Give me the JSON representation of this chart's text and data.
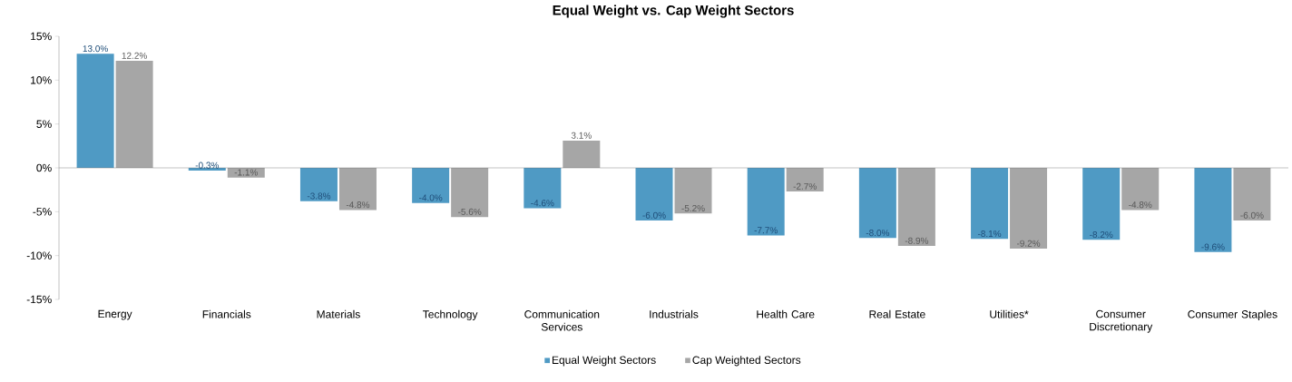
{
  "chart_data": {
    "type": "bar",
    "title": "Equal Weight vs. Cap Weight Sectors",
    "categories": [
      "Energy",
      "Financials",
      "Materials",
      "Technology",
      "Communication Services",
      "Industrials",
      "Health Care",
      "Real Estate",
      "Utilities*",
      "Consumer Discretionary",
      "Consumer Staples"
    ],
    "series": [
      {
        "name": "Equal Weight Sectors",
        "color": "#4f9ac4",
        "values": [
          13.0,
          -0.3,
          -3.8,
          -4.0,
          -4.6,
          -6.0,
          -7.7,
          -8.0,
          -8.1,
          -8.2,
          -9.6
        ],
        "value_labels": [
          "13.0%",
          "-0.3%",
          "-3.8%",
          "-4.0%",
          "-4.6%",
          "-6.0%",
          "-7.7%",
          "-8.0%",
          "-8.1%",
          "-8.2%",
          "-9.6%"
        ]
      },
      {
        "name": "Cap Weighted Sectors",
        "color": "#a6a6a6",
        "values": [
          12.2,
          -1.1,
          -4.8,
          -5.6,
          3.1,
          -5.2,
          -2.7,
          -8.9,
          -9.2,
          -4.8,
          -6.0
        ],
        "value_labels": [
          "12.2%",
          "-1.1%",
          "-4.8%",
          "-5.6%",
          "3.1%",
          "-5.2%",
          "-2.7%",
          "-8.9%",
          "-9.2%",
          "-4.8%",
          "-6.0%"
        ]
      }
    ],
    "ylim": [
      -15,
      15
    ],
    "yticks": [
      {
        "value": -15,
        "label": "-15%"
      },
      {
        "value": -10,
        "label": "-10%"
      },
      {
        "value": -5,
        "label": "-5%"
      },
      {
        "value": 0,
        "label": "0%"
      },
      {
        "value": 5,
        "label": "5%"
      },
      {
        "value": 10,
        "label": "10%"
      },
      {
        "value": 15,
        "label": "15%"
      }
    ],
    "legend": "bottom"
  }
}
